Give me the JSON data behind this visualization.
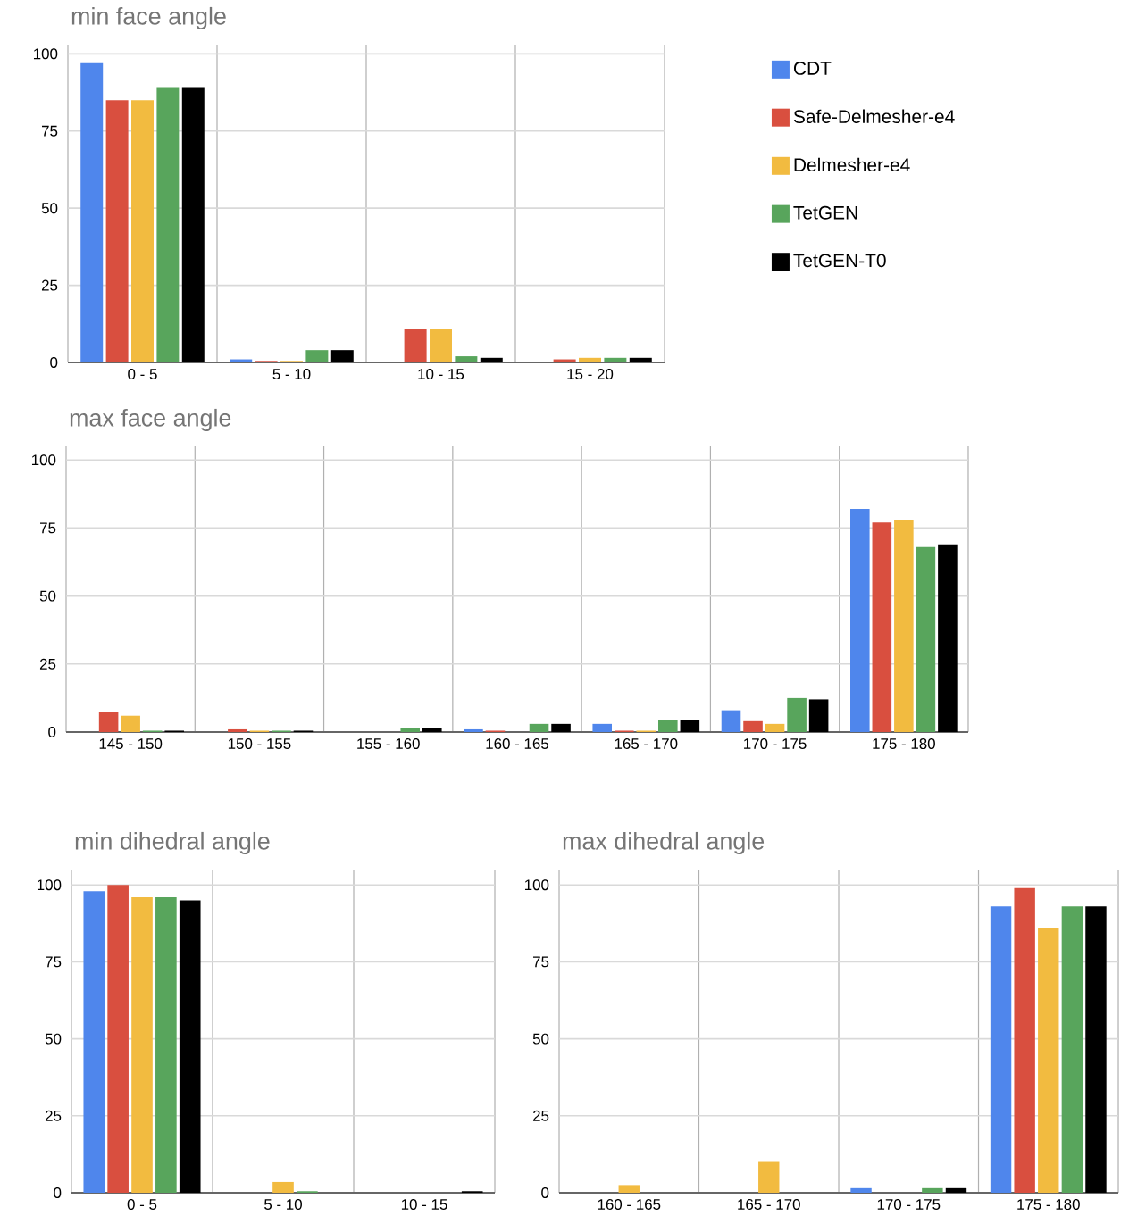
{
  "chart_data": [
    {
      "type": "bar",
      "title": "min face angle",
      "categories": [
        "0 - 5",
        "5 - 10",
        "10 - 15",
        "15 - 20"
      ],
      "ylim": [
        0,
        103
      ],
      "yticks": [
        0,
        25,
        50,
        75,
        100
      ],
      "grid": true,
      "legend": "right",
      "series": [
        {
          "name": "CDT",
          "color": "#4f86ec",
          "values": [
            97,
            1,
            0,
            0
          ]
        },
        {
          "name": "Safe-Delmesher-e4",
          "color": "#d94f3f",
          "values": [
            85,
            0.5,
            11,
            1
          ]
        },
        {
          "name": "Delmesher-e4",
          "color": "#f2bb40",
          "values": [
            85,
            0.5,
            11,
            1.5
          ]
        },
        {
          "name": "TetGEN",
          "color": "#58a55c",
          "values": [
            89,
            4,
            2,
            1.5
          ]
        },
        {
          "name": "TetGEN-T0",
          "color": "#000000",
          "values": [
            89,
            4,
            1.5,
            1.5
          ]
        }
      ]
    },
    {
      "type": "bar",
      "title": "max face angle",
      "categories": [
        "145 - 150",
        "150 - 155",
        "155 - 160",
        "160 - 165",
        "165 - 170",
        "170 - 175",
        "175 - 180"
      ],
      "ylim": [
        0,
        105
      ],
      "yticks": [
        0,
        25,
        50,
        75,
        100
      ],
      "grid": true,
      "series": [
        {
          "color": "#4f86ec",
          "values": [
            0,
            0,
            0,
            1,
            3,
            8,
            82
          ]
        },
        {
          "color": "#d94f3f",
          "values": [
            7.5,
            1,
            0,
            0.5,
            0.5,
            4,
            77
          ]
        },
        {
          "color": "#f2bb40",
          "values": [
            6,
            0.5,
            0,
            0,
            0.5,
            3,
            78
          ]
        },
        {
          "color": "#58a55c",
          "values": [
            0.5,
            0.5,
            1.5,
            3,
            4.5,
            12.5,
            68
          ]
        },
        {
          "color": "#000000",
          "values": [
            0.5,
            0.5,
            1.5,
            3,
            4.5,
            12,
            69
          ]
        }
      ]
    },
    {
      "type": "bar",
      "title": "min dihedral angle",
      "categories": [
        "0 - 5",
        "5 - 10",
        "10 - 15"
      ],
      "ylim": [
        0,
        105
      ],
      "yticks": [
        0,
        25,
        50,
        75,
        100
      ],
      "grid": true,
      "series": [
        {
          "color": "#4f86ec",
          "values": [
            98,
            0,
            0
          ]
        },
        {
          "color": "#d94f3f",
          "values": [
            100,
            0,
            0
          ]
        },
        {
          "color": "#f2bb40",
          "values": [
            96,
            3.5,
            0
          ]
        },
        {
          "color": "#58a55c",
          "values": [
            96,
            0.5,
            0
          ]
        },
        {
          "color": "#000000",
          "values": [
            95,
            0,
            0.5
          ]
        }
      ]
    },
    {
      "type": "bar",
      "title": "max dihedral angle",
      "categories": [
        "160 - 165",
        "165 - 170",
        "170 - 175",
        "175 - 180"
      ],
      "ylim": [
        0,
        105
      ],
      "yticks": [
        0,
        25,
        50,
        75,
        100
      ],
      "grid": true,
      "series": [
        {
          "color": "#4f86ec",
          "values": [
            0,
            0,
            1.5,
            93
          ]
        },
        {
          "color": "#d94f3f",
          "values": [
            0,
            0,
            0,
            99
          ]
        },
        {
          "color": "#f2bb40",
          "values": [
            2.5,
            10,
            0,
            86
          ]
        },
        {
          "color": "#58a55c",
          "values": [
            0,
            0,
            1.5,
            93
          ]
        },
        {
          "color": "#000000",
          "values": [
            0,
            0,
            1.5,
            93
          ]
        }
      ]
    }
  ]
}
